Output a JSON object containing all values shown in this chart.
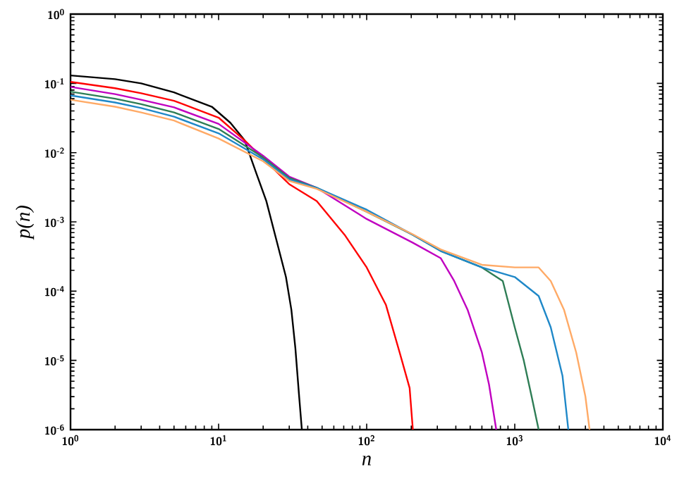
{
  "chart_data": {
    "type": "line",
    "xlabel": "n",
    "ylabel": "p(n)",
    "log": "xy",
    "xlim": [
      1,
      10000
    ],
    "ylim": [
      1e-06,
      1
    ],
    "xticks": [
      {
        "value": 1,
        "label": "10$^{0}$"
      },
      {
        "value": 10,
        "label": "10$^{1}$"
      },
      {
        "value": 100,
        "label": "10$^{2}$"
      },
      {
        "value": 1000,
        "label": "10$^{3}$"
      },
      {
        "value": 10000,
        "label": "10$^{4}$"
      }
    ],
    "yticks": [
      {
        "value": 1e-06,
        "label": "10$^{-6}$"
      },
      {
        "value": 1e-05,
        "label": "10$^{-5}$"
      },
      {
        "value": 0.0001,
        "label": "10$^{-4}$"
      },
      {
        "value": 0.001,
        "label": "10$^{-3}$"
      },
      {
        "value": 0.01,
        "label": "10$^{-2}$"
      },
      {
        "value": 0.1,
        "label": "10$^{-1}$"
      },
      {
        "value": 1,
        "label": "10$^{0}$"
      }
    ],
    "series": [
      {
        "color": "#000000",
        "x": [
          1,
          2,
          3,
          5,
          9,
          12,
          15,
          18,
          21,
          24.5,
          28.5,
          31,
          33,
          35,
          36.5
        ],
        "values": [
          0.13,
          0.115,
          0.1,
          0.074,
          0.046,
          0.027,
          0.015,
          0.005,
          0.002,
          0.00056,
          0.00016,
          5.4e-05,
          1.5e-05,
          3e-06,
          1e-06
        ]
      },
      {
        "color": "#ff0000",
        "x": [
          1,
          2,
          3,
          5,
          10,
          15,
          20,
          30,
          46,
          71,
          100,
          135,
          167,
          195,
          205
        ],
        "values": [
          0.105,
          0.085,
          0.072,
          0.056,
          0.032,
          0.015,
          0.0082,
          0.0035,
          0.002,
          0.00065,
          0.00022,
          6.3e-05,
          1.3e-05,
          4e-06,
          1e-06
        ]
      },
      {
        "color": "#c000c0",
        "x": [
          1,
          2,
          3,
          5,
          10,
          20,
          30,
          46,
          100,
          205,
          316,
          390,
          480,
          600,
          670,
          750
        ],
        "values": [
          0.089,
          0.07,
          0.058,
          0.045,
          0.026,
          0.009,
          0.0045,
          0.0031,
          0.0011,
          0.0005,
          0.0003,
          0.00014,
          5.4e-05,
          1.3e-05,
          4.5e-06,
          1e-06
        ]
      },
      {
        "color": "#2e7d55",
        "x": [
          1,
          2,
          3,
          5,
          10,
          20,
          30,
          46,
          100,
          205,
          316,
          600,
          830,
          1000,
          1150,
          1300,
          1450
        ],
        "values": [
          0.076,
          0.06,
          0.05,
          0.038,
          0.022,
          0.0085,
          0.0043,
          0.0031,
          0.0014,
          0.00065,
          0.00038,
          0.00022,
          0.00014,
          3e-05,
          1e-05,
          3e-06,
          1e-06
        ]
      },
      {
        "color": "#1f88c8",
        "x": [
          1,
          2,
          3,
          5,
          10,
          20,
          30,
          46,
          100,
          205,
          316,
          600,
          1000,
          1450,
          1750,
          2100,
          2300
        ],
        "values": [
          0.067,
          0.053,
          0.044,
          0.033,
          0.019,
          0.008,
          0.0041,
          0.0031,
          0.0015,
          0.00065,
          0.00038,
          0.00022,
          0.00016,
          8.5e-05,
          3e-05,
          6e-06,
          1e-06
        ]
      },
      {
        "color": "#ffaa66",
        "x": [
          1,
          2,
          3,
          5,
          10,
          20,
          30,
          46,
          100,
          205,
          316,
          600,
          1000,
          1450,
          1750,
          2150,
          2600,
          3000,
          3200
        ],
        "values": [
          0.058,
          0.046,
          0.038,
          0.029,
          0.016,
          0.0075,
          0.0039,
          0.003,
          0.0014,
          0.00066,
          0.0004,
          0.00024,
          0.00022,
          0.00022,
          0.00014,
          5.4e-05,
          1.3e-05,
          3e-06,
          1e-06
        ]
      }
    ]
  }
}
